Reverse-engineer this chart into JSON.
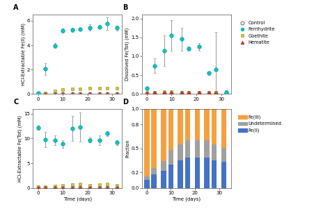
{
  "panel_A": {
    "title": "A",
    "ylabel": "HCl-Extractable Fe(II) (mM)",
    "ylim": [
      0,
      6.5
    ],
    "yticks": [
      0,
      2,
      4,
      6
    ],
    "xlim": [
      -2,
      34
    ],
    "xticks": [
      0,
      10,
      20,
      30
    ],
    "control_x": [
      0,
      3,
      7,
      10,
      14,
      17,
      21,
      25,
      28,
      32
    ],
    "control_y": [
      0.05,
      0.05,
      0.05,
      0.05,
      0.05,
      0.05,
      0.05,
      0.05,
      0.05,
      0.05
    ],
    "control_err": [
      0.02,
      0.02,
      0.02,
      0.02,
      0.02,
      0.02,
      0.02,
      0.02,
      0.02,
      0.02
    ],
    "ferri_x": [
      0,
      3,
      7,
      10,
      14,
      17,
      21,
      25,
      28,
      32
    ],
    "ferri_y": [
      0.1,
      2.05,
      3.95,
      5.2,
      5.25,
      5.3,
      5.45,
      5.5,
      5.75,
      5.4
    ],
    "ferri_err": [
      0.05,
      0.5,
      0.2,
      0.15,
      0.15,
      0.1,
      0.25,
      0.15,
      0.5,
      0.2
    ],
    "goethite_x": [
      0,
      3,
      7,
      10,
      14,
      17,
      21,
      25,
      28,
      32
    ],
    "goethite_y": [
      0.05,
      0.1,
      0.25,
      0.35,
      0.4,
      0.45,
      0.5,
      0.5,
      0.5,
      0.5
    ],
    "goethite_err": [
      0.02,
      0.05,
      0.05,
      0.05,
      0.05,
      0.05,
      0.05,
      0.05,
      0.05,
      0.05
    ],
    "hematite_x": [
      0,
      3,
      7,
      10,
      14,
      17,
      21,
      25,
      28,
      32
    ],
    "hematite_y": [
      0.05,
      0.05,
      0.05,
      0.05,
      0.05,
      0.05,
      0.05,
      0.05,
      0.05,
      0.05
    ],
    "hematite_err": [
      0.02,
      0.02,
      0.02,
      0.02,
      0.02,
      0.02,
      0.02,
      0.02,
      0.02,
      0.02
    ]
  },
  "panel_B": {
    "title": "B",
    "ylabel": "Dissolved Fe(Tot) (mM)",
    "ylim": [
      0,
      2.1
    ],
    "yticks": [
      0.0,
      0.5,
      1.0,
      1.5,
      2.0
    ],
    "xlim": [
      -2,
      34
    ],
    "xticks": [
      0,
      10,
      20,
      30
    ],
    "control_x": [
      0,
      3,
      7,
      10,
      14,
      17,
      21,
      25,
      28,
      32
    ],
    "control_y": [
      0.02,
      0.02,
      0.02,
      0.02,
      0.02,
      0.02,
      0.02,
      0.02,
      0.02,
      0.02
    ],
    "control_err": [
      0.01,
      0.01,
      0.01,
      0.01,
      0.01,
      0.01,
      0.01,
      0.01,
      0.01,
      0.01
    ],
    "ferri_x": [
      0,
      3,
      7,
      10,
      14,
      17,
      21,
      25,
      28,
      32
    ],
    "ferri_y": [
      0.15,
      0.75,
      1.15,
      1.55,
      1.45,
      1.2,
      1.25,
      0.55,
      0.65,
      0.05
    ],
    "ferri_err": [
      0.05,
      0.2,
      0.4,
      0.4,
      0.3,
      0.05,
      0.1,
      0.05,
      1.0,
      0.05
    ],
    "goethite_x": [
      0,
      3,
      7,
      10,
      14,
      17,
      21,
      25,
      28,
      32
    ],
    "goethite_y": [
      0.02,
      0.05,
      0.07,
      0.07,
      0.05,
      0.05,
      0.05,
      0.05,
      0.05,
      0.05
    ],
    "goethite_err": [
      0.01,
      0.02,
      0.02,
      0.02,
      0.02,
      0.02,
      0.02,
      0.02,
      0.02,
      0.02
    ],
    "hematite_x": [
      0,
      3,
      7,
      10,
      14,
      17,
      21,
      25,
      28,
      32
    ],
    "hematite_y": [
      0.02,
      0.05,
      0.05,
      0.05,
      0.05,
      0.05,
      0.05,
      0.05,
      0.05,
      0.05
    ],
    "hematite_err": [
      0.01,
      0.02,
      0.02,
      0.02,
      0.02,
      0.02,
      0.02,
      0.02,
      0.02,
      0.02
    ]
  },
  "panel_C": {
    "title": "C",
    "ylabel": "HCl-Extractable Fe(Tot) (mM)",
    "xlabel": "Time (days)",
    "ylim": [
      0,
      16
    ],
    "yticks": [
      0,
      5,
      10,
      15
    ],
    "xlim": [
      -2,
      34
    ],
    "xticks": [
      0,
      10,
      20,
      30
    ],
    "control_x": [
      0,
      3,
      7,
      10,
      14,
      17,
      21,
      25,
      28,
      32
    ],
    "control_y": [
      0.1,
      0.1,
      0.1,
      0.1,
      0.1,
      0.1,
      0.1,
      0.1,
      0.1,
      0.1
    ],
    "control_err": [
      0.05,
      0.05,
      0.05,
      0.05,
      0.05,
      0.05,
      0.05,
      0.05,
      0.05,
      0.05
    ],
    "ferri_x": [
      0,
      3,
      7,
      10,
      14,
      17,
      21,
      25,
      28,
      32
    ],
    "ferri_y": [
      12.2,
      9.8,
      9.6,
      8.9,
      12.0,
      12.3,
      9.7,
      9.6,
      11.0,
      9.2
    ],
    "ferri_err": [
      0.5,
      1.5,
      1.0,
      0.8,
      2.5,
      3.0,
      0.5,
      1.0,
      0.5,
      0.5
    ],
    "goethite_x": [
      0,
      3,
      7,
      10,
      14,
      17,
      21,
      25,
      28,
      32
    ],
    "goethite_y": [
      0.2,
      0.3,
      0.4,
      0.5,
      0.7,
      0.8,
      0.6,
      0.7,
      0.8,
      0.5
    ],
    "goethite_err": [
      0.05,
      0.1,
      0.1,
      0.1,
      0.2,
      0.2,
      0.1,
      0.1,
      0.1,
      0.1
    ],
    "hematite_x": [
      0,
      3,
      7,
      10,
      14,
      17,
      21,
      25,
      28,
      32
    ],
    "hematite_y": [
      0.1,
      0.1,
      0.1,
      0.1,
      0.1,
      0.1,
      0.1,
      0.1,
      0.1,
      0.1
    ],
    "hematite_err": [
      0.05,
      0.05,
      0.05,
      0.05,
      0.05,
      0.05,
      0.05,
      0.05,
      0.05,
      0.05
    ]
  },
  "panel_D": {
    "title": "D",
    "ylabel": "Fraction",
    "xlabel": "Time (days)",
    "ylim": [
      0,
      1.0
    ],
    "yticks": [
      0.0,
      0.2,
      0.5,
      0.8,
      1.0
    ],
    "days": [
      0,
      3,
      7,
      10,
      14,
      17,
      21,
      25,
      28,
      32
    ],
    "fe_ii": [
      0.1,
      0.17,
      0.22,
      0.3,
      0.35,
      0.38,
      0.38,
      0.38,
      0.35,
      0.33
    ],
    "undetermined": [
      0.05,
      0.08,
      0.12,
      0.18,
      0.2,
      0.22,
      0.22,
      0.22,
      0.2,
      0.18
    ],
    "fe_iii": [
      0.85,
      0.75,
      0.66,
      0.52,
      0.45,
      0.4,
      0.4,
      0.4,
      0.45,
      0.49
    ],
    "color_fe_iii": "#F5A040",
    "color_undetermined": "#A0A0A0",
    "color_fe_ii": "#4472C4",
    "bar_width": 2.2
  },
  "colors": {
    "control": "#FFFFFF",
    "ferrihydrite": "#00C8C8",
    "goethite": "#D4C830",
    "hematite": "#C83232",
    "edge_control": "#606060",
    "edge_ferri": "#008888",
    "edge_goethite": "#908820",
    "edge_hematite": "#A02020"
  },
  "legend_B": {
    "labels": [
      "Control",
      "Ferrihydrite",
      "Goethite",
      "Hematite"
    ]
  },
  "legend_D": {
    "labels": [
      "Fe(III)",
      "Undetermined",
      "Fe(II)"
    ]
  }
}
